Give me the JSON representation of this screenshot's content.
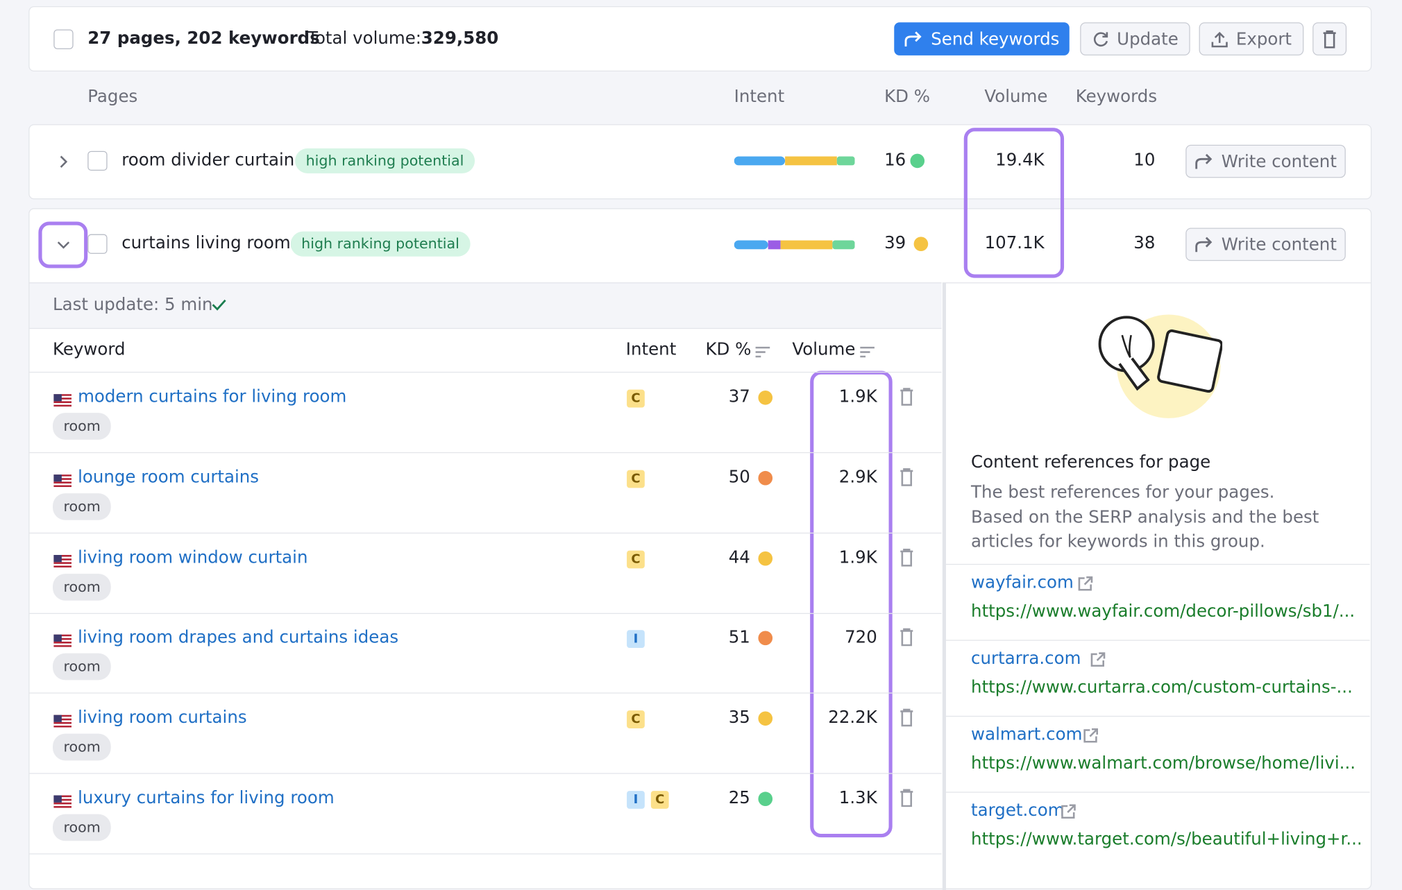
{
  "toolbar": {
    "summary": "27 pages, 202 keywords",
    "total_volume_label": "Total volume:",
    "total_volume": "329,580",
    "buttons": [
      "Send keywords",
      "Update",
      "Export"
    ]
  },
  "pages_header": [
    "Pages",
    "Intent",
    "KD %",
    "Volume",
    "Keywords"
  ],
  "pages": [
    {
      "name": "room divider curtain",
      "tag": "high ranking potential",
      "kd": 16,
      "kd_color": "#59d08c",
      "volume": "19.4K",
      "keywords": 10,
      "action": "Write content"
    },
    {
      "name": "curtains living room",
      "tag": "high ranking potential",
      "kd": 39,
      "kd_color": "#f5c342",
      "volume": "107.1K",
      "keywords": 38,
      "action": "Write content"
    }
  ],
  "detail": {
    "last_update": "Last update: 5 min",
    "columns": [
      "Keyword",
      "Intent",
      "KD %",
      "Volume"
    ],
    "keywords": [
      {
        "keyword": "modern curtains for living room",
        "tag": "room",
        "intent": [
          "C"
        ],
        "kd": 37,
        "kd_color": "#f5c342",
        "volume": "1.9K"
      },
      {
        "keyword": "lounge room curtains",
        "tag": "room",
        "intent": [
          "C"
        ],
        "kd": 50,
        "kd_color": "#f08c4b",
        "volume": "2.9K"
      },
      {
        "keyword": "living room window curtain",
        "tag": "room",
        "intent": [
          "C"
        ],
        "kd": 44,
        "kd_color": "#f5c342",
        "volume": "1.9K"
      },
      {
        "keyword": "living room drapes and curtains ideas",
        "tag": "room",
        "intent": [
          "I"
        ],
        "kd": 51,
        "kd_color": "#f08c4b",
        "volume": "720"
      },
      {
        "keyword": "living room curtains",
        "tag": "room",
        "intent": [
          "C"
        ],
        "kd": 35,
        "kd_color": "#f5c342",
        "volume": "22.2K"
      },
      {
        "keyword": "luxury curtains for living room",
        "tag": "room",
        "intent": [
          "I",
          "C"
        ],
        "kd": 25,
        "kd_color": "#59d08c",
        "volume": "1.3K"
      }
    ]
  },
  "references": {
    "title": "Content references for page",
    "description": "The best references for your pages. Based on the SERP analysis and the best articles for keywords in this group.",
    "items": [
      {
        "domain": "wayfair.com",
        "url": "https://www.wayfair.com/decor-pillows/sb1/..."
      },
      {
        "domain": "curtarra.com",
        "url": "https://www.curtarra.com/custom-curtains-..."
      },
      {
        "domain": "walmart.com",
        "url": "https://www.walmart.com/browse/home/livi..."
      },
      {
        "domain": "target.com",
        "url": "https://www.target.com/s/beautiful+living+r..."
      }
    ]
  }
}
